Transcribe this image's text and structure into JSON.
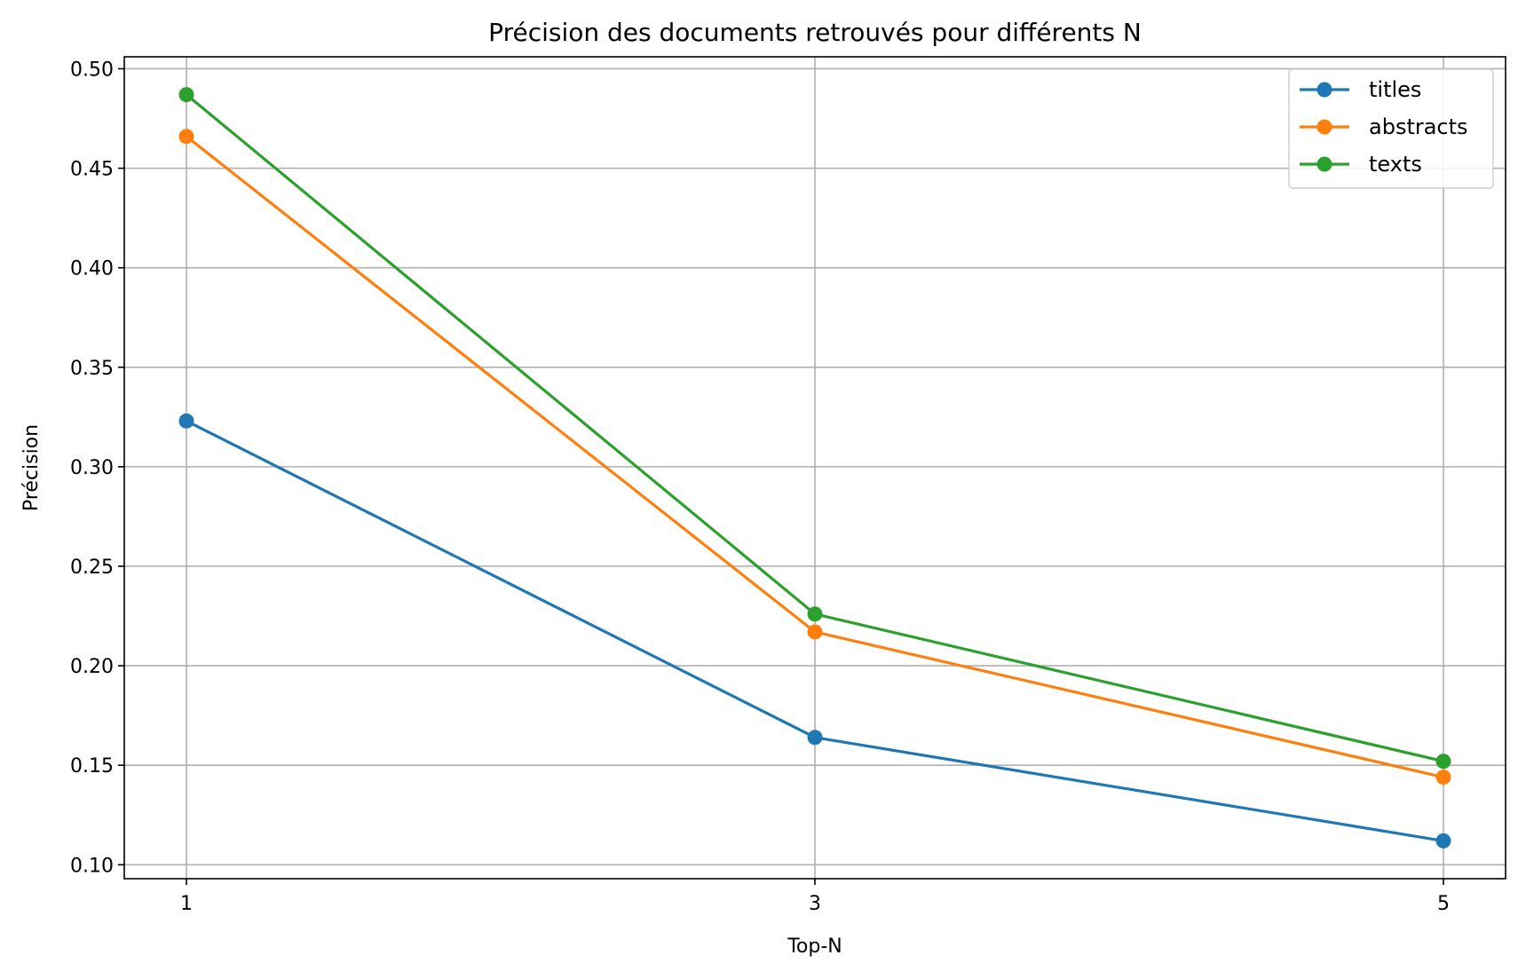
{
  "chart_data": {
    "type": "line",
    "title": "Précision des documents retrouvés pour différents N",
    "xlabel": "Top-N",
    "ylabel": "Précision",
    "x": [
      1,
      3,
      5
    ],
    "x_tick_labels": [
      "1",
      "3",
      "5"
    ],
    "ylim": [
      0.093,
      0.506
    ],
    "y_ticks": [
      0.1,
      0.15,
      0.2,
      0.25,
      0.3,
      0.35,
      0.4,
      0.45,
      0.5
    ],
    "y_tick_labels": [
      "0.10",
      "0.15",
      "0.20",
      "0.25",
      "0.30",
      "0.35",
      "0.40",
      "0.45",
      "0.50"
    ],
    "grid": true,
    "legend_position": "top-right",
    "series": [
      {
        "name": "titles",
        "color": "#1f77b4",
        "values": [
          0.323,
          0.164,
          0.112
        ]
      },
      {
        "name": "abstracts",
        "color": "#ff7f0e",
        "values": [
          0.466,
          0.217,
          0.144
        ]
      },
      {
        "name": "texts",
        "color": "#2ca02c",
        "values": [
          0.487,
          0.226,
          0.152
        ]
      }
    ]
  }
}
